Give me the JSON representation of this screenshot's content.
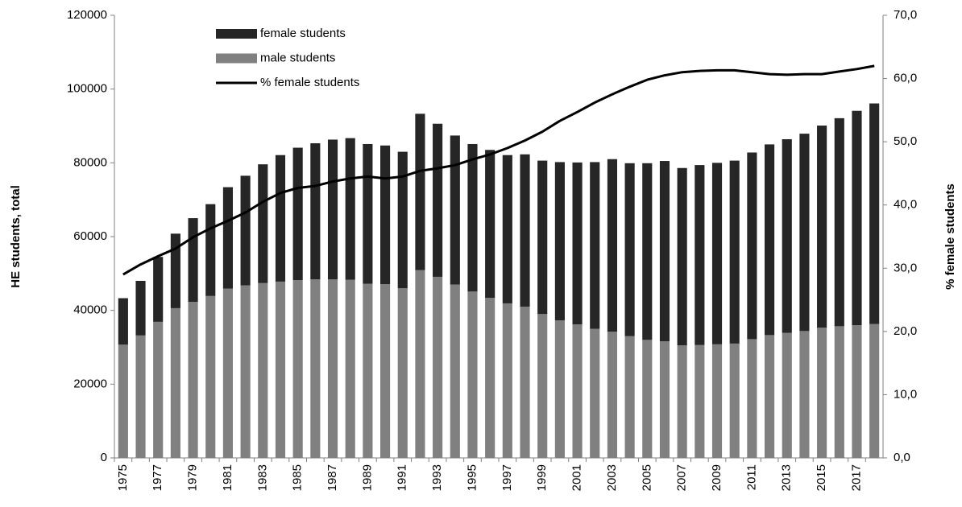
{
  "chart_data": {
    "type": "bar",
    "stacked": true,
    "y_label": "HE students, total",
    "y2_label": "% female students",
    "categories": [
      "1975",
      null,
      "1977",
      null,
      "1979",
      null,
      "1981",
      null,
      "1983",
      null,
      "1985",
      null,
      "1987",
      null,
      "1989",
      null,
      "1991",
      null,
      "1993",
      null,
      "1995",
      null,
      "1997",
      null,
      "1999",
      null,
      "2001",
      null,
      "2003",
      null,
      "2005",
      null,
      "2007",
      null,
      "2009",
      null,
      "2011",
      null,
      "2013",
      null,
      "2015",
      null,
      "2017",
      null
    ],
    "series": [
      {
        "name": "female students",
        "color": "#262626",
        "type": "bar",
        "values": [
          12600,
          14800,
          17600,
          20200,
          22700,
          24900,
          27500,
          29700,
          32200,
          34300,
          35900,
          36900,
          37900,
          38400,
          37900,
          37600,
          37000,
          42400,
          41500,
          40400,
          40000,
          40100,
          40200,
          41300,
          41600,
          42900,
          43900,
          45200,
          46800,
          46900,
          47900,
          48900,
          48100,
          48800,
          49200,
          49600,
          50600,
          51700,
          52500,
          53500,
          54800,
          56400,
          58100,
          59800
        ]
      },
      {
        "name": "male students",
        "color": "#808080",
        "type": "bar",
        "values": [
          30700,
          33200,
          36900,
          40600,
          42300,
          43900,
          45900,
          46800,
          47400,
          47800,
          48200,
          48400,
          48400,
          48300,
          47200,
          47100,
          46000,
          50900,
          49100,
          47000,
          45100,
          43400,
          41900,
          41000,
          39000,
          37300,
          36200,
          35000,
          34200,
          33000,
          32000,
          31600,
          30500,
          30600,
          30800,
          31000,
          32200,
          33300,
          33900,
          34400,
          35300,
          35700,
          36000,
          36300
        ]
      },
      {
        "name": "% female students",
        "color": "#000000",
        "type": "line",
        "axis": "y2",
        "values": [
          29.0,
          30.6,
          31.9,
          33.1,
          34.9,
          36.3,
          37.5,
          38.8,
          40.5,
          41.9,
          42.7,
          43.0,
          43.7,
          44.2,
          44.5,
          44.2,
          44.5,
          45.4,
          45.8,
          46.3,
          47.2,
          48.0,
          49.0,
          50.2,
          51.6,
          53.3,
          54.7,
          56.2,
          57.5,
          58.7,
          59.8,
          60.5,
          61.0,
          61.2,
          61.3,
          61.3,
          61.0,
          60.7,
          60.6,
          60.7,
          60.7,
          61.1,
          61.5,
          62.0
        ]
      }
    ],
    "ylim": [
      0,
      120000
    ],
    "yticks": [
      0,
      20000,
      40000,
      60000,
      80000,
      100000,
      120000
    ],
    "y2lim": [
      0,
      70
    ],
    "y2ticks": [
      {
        "value": 0,
        "label": "0,0"
      },
      {
        "value": 10,
        "label": "10,0"
      },
      {
        "value": 20,
        "label": "20,0"
      },
      {
        "value": 30,
        "label": "30,0"
      },
      {
        "value": 40,
        "label": "40,0"
      },
      {
        "value": 50,
        "label": "50,0"
      },
      {
        "value": 60,
        "label": "60,0"
      },
      {
        "value": 70,
        "label": "70,0"
      }
    ],
    "grid": false,
    "legend": "top-left"
  }
}
